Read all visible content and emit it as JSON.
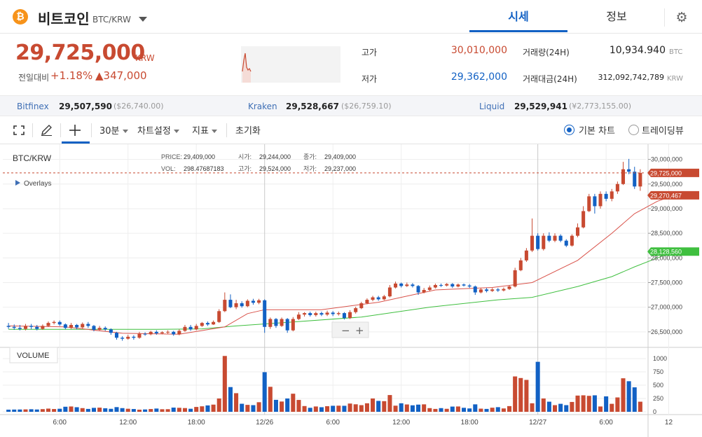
{
  "header": {
    "coin_icon": "bitcoin-icon",
    "coin_name": "비트코인",
    "pair": "BTC/KRW",
    "tabs": [
      {
        "label": "시세",
        "active": true
      },
      {
        "label": "정보",
        "active": false
      }
    ],
    "settings_icon": "gear-icon"
  },
  "ticker": {
    "price": "29,725,000",
    "unit": "KRW",
    "change_label": "전일대비",
    "change_rate": "+1.18%",
    "change_amount": "▲347,000",
    "high_label": "고가",
    "high": "30,010,000",
    "low_label": "저가",
    "low": "29,362,000",
    "volume_label": "거래량(24H)",
    "volume": "10,934.940",
    "volume_unit": "BTC",
    "value_label": "거래대금(24H)",
    "value": "312,092,742,789",
    "value_unit": "KRW"
  },
  "exchanges": [
    {
      "name": "Bitfinex",
      "price": "29,507,590",
      "usd": "($26,740.00)"
    },
    {
      "name": "Kraken",
      "price": "29,528,667",
      "usd": "($26,759.10)"
    },
    {
      "name": "Liquid",
      "price": "29,529,941",
      "usd": "(¥2,773,155.00)"
    }
  ],
  "toolbar": {
    "fullscreen_icon": "fullscreen-icon",
    "draw_icon": "pencil-icon",
    "crosshair_icon": "crosshair-icon",
    "interval": "30분",
    "chart_settings": "차트설정",
    "indicators": "지표",
    "reset": "초기화",
    "view_basic": "기본 차트",
    "view_tradingview": "트레이딩뷰"
  },
  "colors": {
    "up": "#c84a31",
    "down": "#1261c4",
    "ma_short": "#d9524a",
    "ma_long": "#3fbf3f",
    "accent": "#1261c4"
  },
  "legend": {
    "pair": "BTC/KRW",
    "price_label": "PRICE:",
    "price": "29,409,000",
    "vol_label": "VOL:",
    "vol": "298.47687183",
    "open_label": "시가:",
    "open": "29,244,000",
    "high_label": "고가:",
    "high": "29,524,000",
    "close_label": "종가:",
    "close": "29,409,000",
    "low_label": "저가:",
    "low": "29,237,000",
    "overlays": "Overlays"
  },
  "zoom": {
    "minus": "−",
    "plus": "+"
  },
  "volume_label": "VOLUME",
  "chart_data": {
    "type": "candlestick",
    "interval_minutes": 30,
    "y_ticks": [
      "30,000,000",
      "29,500,000",
      "29,000,000",
      "28,500,000",
      "28,000,000",
      "27,500,000",
      "27,000,000",
      "26,500,000"
    ],
    "y_tick_values": [
      30000000,
      29500000,
      29000000,
      28500000,
      28000000,
      27500000,
      27000000,
      26500000
    ],
    "ylim": [
      26270000,
      30250000
    ],
    "vol_ticks": [
      "1000",
      "750",
      "500",
      "250",
      "0"
    ],
    "vol_tick_values": [
      1000,
      750,
      500,
      250,
      0
    ],
    "vol_max": 1080,
    "x_ticks": [
      "6:00",
      "12:00",
      "18:00",
      "12/26",
      "6:00",
      "12:00",
      "18:00",
      "12/27",
      "6:00",
      "12"
    ],
    "x_tick_index": [
      9,
      21,
      33,
      45,
      57,
      69,
      81,
      93,
      105,
      116
    ],
    "price_tags": [
      {
        "label": "29,725,000",
        "value": 29725000,
        "color": "#c84a31"
      },
      {
        "label": "29,270,467",
        "value": 29270467,
        "color": "#c84a31"
      },
      {
        "label": "28,128,560",
        "value": 28128560,
        "color": "#3fbf3f"
      }
    ],
    "candles": [
      [
        26620000,
        26600000,
        26680000,
        26560000,
        40
      ],
      [
        26600000,
        26580000,
        26650000,
        26540000,
        42
      ],
      [
        26580000,
        26560000,
        26640000,
        26530000,
        43
      ],
      [
        26560000,
        26620000,
        26660000,
        26530000,
        45
      ],
      [
        26620000,
        26600000,
        26660000,
        26550000,
        48
      ],
      [
        26600000,
        26560000,
        26640000,
        26530000,
        43
      ],
      [
        26560000,
        26620000,
        26650000,
        26540000,
        50
      ],
      [
        26620000,
        26680000,
        26710000,
        26600000,
        60
      ],
      [
        26680000,
        26700000,
        26730000,
        26650000,
        52
      ],
      [
        26700000,
        26650000,
        26730000,
        26620000,
        57
      ],
      [
        26650000,
        26580000,
        26670000,
        26550000,
        95
      ],
      [
        26580000,
        26640000,
        26680000,
        26560000,
        100
      ],
      [
        26640000,
        26590000,
        26660000,
        26550000,
        86
      ],
      [
        26590000,
        26660000,
        26690000,
        26570000,
        69
      ],
      [
        26660000,
        26620000,
        26700000,
        26580000,
        54
      ],
      [
        26620000,
        26540000,
        26640000,
        26510000,
        74
      ],
      [
        26540000,
        26580000,
        26620000,
        26520000,
        78
      ],
      [
        26580000,
        26550000,
        26610000,
        26520000,
        66
      ],
      [
        26550000,
        26480000,
        26570000,
        26440000,
        56
      ],
      [
        26480000,
        26380000,
        26500000,
        26340000,
        88
      ],
      [
        26380000,
        26360000,
        26410000,
        26320000,
        69
      ],
      [
        26360000,
        26400000,
        26440000,
        26340000,
        57
      ],
      [
        26400000,
        26380000,
        26430000,
        26340000,
        52
      ],
      [
        26380000,
        26460000,
        26500000,
        26360000,
        40
      ],
      [
        26460000,
        26450000,
        26490000,
        26420000,
        44
      ],
      [
        26450000,
        26500000,
        26520000,
        26430000,
        52
      ],
      [
        26500000,
        26470000,
        26530000,
        26440000,
        61
      ],
      [
        26470000,
        26490000,
        26510000,
        26450000,
        48
      ],
      [
        26490000,
        26500000,
        26530000,
        26460000,
        49
      ],
      [
        26500000,
        26450000,
        26520000,
        26420000,
        79
      ],
      [
        26450000,
        26520000,
        26550000,
        26430000,
        75
      ],
      [
        26520000,
        26600000,
        26640000,
        26500000,
        70
      ],
      [
        26600000,
        26550000,
        26640000,
        26520000,
        57
      ],
      [
        26550000,
        26620000,
        26660000,
        26530000,
        91
      ],
      [
        26620000,
        26680000,
        26700000,
        26600000,
        103
      ],
      [
        26680000,
        26650000,
        26710000,
        26620000,
        120
      ],
      [
        26650000,
        26700000,
        26730000,
        26640000,
        135
      ],
      [
        26700000,
        26920000,
        26960000,
        26680000,
        250
      ],
      [
        26920000,
        27150000,
        27300000,
        26900000,
        1050
      ],
      [
        27150000,
        27000000,
        27260000,
        26980000,
        465
      ],
      [
        27000000,
        27080000,
        27150000,
        26960000,
        350
      ],
      [
        27080000,
        27020000,
        27120000,
        26990000,
        151
      ],
      [
        27020000,
        27130000,
        27160000,
        27000000,
        130
      ],
      [
        27130000,
        27090000,
        27170000,
        27050000,
        125
      ],
      [
        27090000,
        27140000,
        27170000,
        27060000,
        180
      ],
      [
        27140000,
        26600000,
        27160000,
        26480000,
        745
      ],
      [
        26600000,
        26760000,
        26790000,
        26560000,
        470
      ],
      [
        26760000,
        26620000,
        26780000,
        26580000,
        225
      ],
      [
        26620000,
        26760000,
        26790000,
        26600000,
        193
      ],
      [
        26760000,
        26530000,
        26780000,
        26480000,
        250
      ],
      [
        26530000,
        26760000,
        26800000,
        26510000,
        340
      ],
      [
        26760000,
        26850000,
        26900000,
        26740000,
        223
      ],
      [
        26850000,
        26880000,
        26900000,
        26810000,
        108
      ],
      [
        26880000,
        26840000,
        26910000,
        26810000,
        75
      ],
      [
        26840000,
        26880000,
        26910000,
        26810000,
        100
      ],
      [
        26880000,
        26850000,
        26910000,
        26820000,
        86
      ],
      [
        26850000,
        26890000,
        26930000,
        26820000,
        105
      ],
      [
        26890000,
        26860000,
        26920000,
        26820000,
        113
      ],
      [
        26860000,
        26880000,
        26910000,
        26830000,
        115
      ],
      [
        26880000,
        26780000,
        26900000,
        26750000,
        113
      ],
      [
        26780000,
        26900000,
        26940000,
        26760000,
        155
      ],
      [
        26900000,
        26980000,
        27010000,
        26870000,
        141
      ],
      [
        26980000,
        27080000,
        27110000,
        26960000,
        125
      ],
      [
        27080000,
        27150000,
        27180000,
        27060000,
        160
      ],
      [
        27150000,
        27200000,
        27230000,
        27120000,
        250
      ],
      [
        27200000,
        27160000,
        27230000,
        27130000,
        205
      ],
      [
        27160000,
        27220000,
        27250000,
        27140000,
        200
      ],
      [
        27220000,
        27400000,
        27450000,
        27200000,
        315
      ],
      [
        27400000,
        27480000,
        27520000,
        27380000,
        115
      ],
      [
        27480000,
        27430000,
        27500000,
        27400000,
        160
      ],
      [
        27430000,
        27460000,
        27500000,
        27410000,
        138
      ],
      [
        27460000,
        27430000,
        27490000,
        27400000,
        122
      ],
      [
        27430000,
        27300000,
        27450000,
        27250000,
        135
      ],
      [
        27300000,
        27350000,
        27390000,
        27280000,
        140
      ],
      [
        27350000,
        27400000,
        27440000,
        27320000,
        69
      ],
      [
        27400000,
        27450000,
        27480000,
        27380000,
        54
      ],
      [
        27450000,
        27440000,
        27480000,
        27410000,
        69
      ],
      [
        27440000,
        27470000,
        27490000,
        27420000,
        56
      ],
      [
        27470000,
        27420000,
        27490000,
        27390000,
        98
      ],
      [
        27420000,
        27460000,
        27480000,
        27400000,
        100
      ],
      [
        27460000,
        27440000,
        27480000,
        27420000,
        75
      ],
      [
        27440000,
        27420000,
        27470000,
        27390000,
        63
      ],
      [
        27420000,
        27300000,
        27440000,
        27250000,
        140
      ],
      [
        27300000,
        27360000,
        27390000,
        27280000,
        59
      ],
      [
        27360000,
        27330000,
        27390000,
        27300000,
        54
      ],
      [
        27330000,
        27360000,
        27390000,
        27310000,
        77
      ],
      [
        27360000,
        27340000,
        27390000,
        27310000,
        87
      ],
      [
        27340000,
        27370000,
        27400000,
        27320000,
        63
      ],
      [
        27370000,
        27420000,
        27450000,
        27350000,
        107
      ],
      [
        27420000,
        27750000,
        27800000,
        27400000,
        665
      ],
      [
        27750000,
        27950000,
        28000000,
        27730000,
        635
      ],
      [
        27950000,
        28150000,
        28200000,
        27920000,
        600
      ],
      [
        28150000,
        28450000,
        28800000,
        28120000,
        160
      ],
      [
        28450000,
        28180000,
        28500000,
        28150000,
        940
      ],
      [
        28180000,
        28450000,
        28500000,
        28150000,
        250
      ],
      [
        28450000,
        28350000,
        28520000,
        28320000,
        190
      ],
      [
        28350000,
        28450000,
        28500000,
        28320000,
        125
      ],
      [
        28450000,
        28350000,
        28480000,
        28320000,
        150
      ],
      [
        28350000,
        28250000,
        28380000,
        28220000,
        125
      ],
      [
        28250000,
        28450000,
        28480000,
        28230000,
        185
      ],
      [
        28450000,
        28620000,
        28700000,
        28420000,
        305
      ],
      [
        28620000,
        28950000,
        29050000,
        28600000,
        310
      ],
      [
        28950000,
        29250000,
        29300000,
        28930000,
        300
      ],
      [
        29250000,
        29050000,
        29300000,
        28900000,
        310
      ],
      [
        29050000,
        29300000,
        29350000,
        29000000,
        100
      ],
      [
        29300000,
        29200000,
        29350000,
        29150000,
        290
      ],
      [
        29200000,
        29350000,
        29400000,
        29150000,
        150
      ],
      [
        29350000,
        29500000,
        29550000,
        29300000,
        270
      ],
      [
        29500000,
        29800000,
        29950000,
        29480000,
        630
      ],
      [
        29800000,
        29750000,
        30010000,
        29700000,
        575
      ],
      [
        29750000,
        29450000,
        29850000,
        29400000,
        460
      ],
      [
        29450000,
        29725000,
        29800000,
        29362000,
        190
      ]
    ],
    "ma_short": [
      [
        0,
        26620000
      ],
      [
        10,
        26600000
      ],
      [
        20,
        26470000
      ],
      [
        30,
        26450000
      ],
      [
        38,
        26600000
      ],
      [
        42,
        26870000
      ],
      [
        45,
        26950000
      ],
      [
        55,
        26950000
      ],
      [
        65,
        27100000
      ],
      [
        75,
        27350000
      ],
      [
        85,
        27400000
      ],
      [
        92,
        27500000
      ],
      [
        100,
        27950000
      ],
      [
        106,
        28500000
      ],
      [
        110,
        28900000
      ],
      [
        114,
        29150000
      ],
      [
        117,
        29270467
      ]
    ],
    "ma_long": [
      [
        0,
        26550000
      ],
      [
        14,
        26550000
      ],
      [
        26,
        26550000
      ],
      [
        34,
        26560000
      ],
      [
        40,
        26620000
      ],
      [
        50,
        26700000
      ],
      [
        62,
        26800000
      ],
      [
        74,
        27000000
      ],
      [
        86,
        27150000
      ],
      [
        92,
        27200000
      ],
      [
        100,
        27420000
      ],
      [
        106,
        27620000
      ],
      [
        110,
        27820000
      ],
      [
        114,
        28000000
      ],
      [
        117,
        28128560
      ]
    ]
  }
}
